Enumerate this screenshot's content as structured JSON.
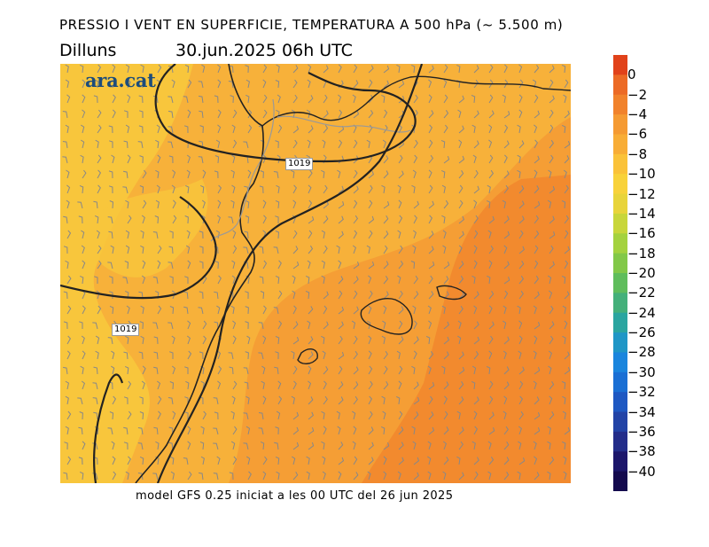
{
  "header": {
    "title": "PRESSIO I VENT EN SUPERFICIE, TEMPERATURA A 500 hPa (~ 5.500 m)",
    "weekday": "Dilluns",
    "date": "30.jun.2025 06h UTC"
  },
  "logo": {
    "text": "ara.cat"
  },
  "isobars": [
    {
      "label": "1019"
    },
    {
      "label": "1019"
    }
  ],
  "footer": {
    "text": "model GFS 0.25 iniciat a les 00 UTC del 26 jun 2025"
  },
  "colorbar": {
    "ticks": [
      "0",
      "−2",
      "−4",
      "−6",
      "−8",
      "−10",
      "−12",
      "−14",
      "−16",
      "−18",
      "−20",
      "−22",
      "−24",
      "−26",
      "−28",
      "−30",
      "−32",
      "−34",
      "−36",
      "−38",
      "−40"
    ],
    "colors": [
      "#e1421a",
      "#ec6a25",
      "#f1822b",
      "#f59a32",
      "#f8ad36",
      "#fac239",
      "#f8d23a",
      "#e8d43a",
      "#c8d63a",
      "#a4d23e",
      "#82c848",
      "#5fbd5c",
      "#44b07a",
      "#2aa5a0",
      "#1f96c6",
      "#1a85dd",
      "#1a6fd4",
      "#1e58c2",
      "#2243a6",
      "#232d8a",
      "#1c166b",
      "#140a4e"
    ],
    "unit_side": "right"
  },
  "map_colors": {
    "light": "#f8c63c",
    "mid": "#f7b13a",
    "warm": "#f59e35",
    "hot": "#f28a2e"
  }
}
